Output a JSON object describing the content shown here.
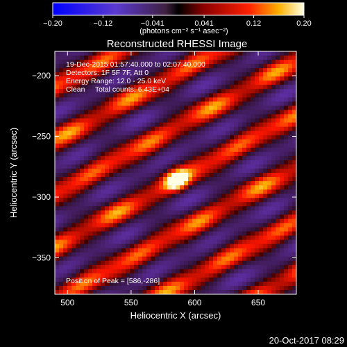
{
  "chart_data": {
    "type": "heatmap",
    "title": "Reconstructed RHESSI Image",
    "xlabel": "Heliocentric X (arcsec)",
    "ylabel": "Heliocentric Y (arcsec)",
    "xlim": [
      490,
      680
    ],
    "ylim": [
      -380,
      -180
    ],
    "x_ticks": [
      500,
      550,
      600,
      650
    ],
    "x_tick_labels": [
      "500",
      "550",
      "600",
      "650"
    ],
    "y_ticks": [
      -200,
      -250,
      -300,
      -350
    ],
    "y_tick_labels": [
      "−200",
      "−250",
      "−300",
      "−350"
    ],
    "colorbar": {
      "range": [
        -0.2,
        0.2
      ],
      "ticks": [
        -0.2,
        -0.12,
        -0.041,
        0.041,
        0.12,
        0.2
      ],
      "tick_labels": [
        "−0.20",
        "−0.12",
        "−0.041",
        "0.041",
        "0.12",
        "0.20"
      ],
      "unit_label": "(photons cm⁻² s⁻¹ asec⁻²)"
    },
    "annotations": [
      "19-Dec-2015 01:57:40.000 to 02:07:40.000",
      "Detectors: 1F 5F 7F, Att 0",
      "Energy Range: 12.0 - 25.0 keV",
      "Clean     Total counts: 6.43E+04"
    ],
    "peak_label": "Position of Peak = [586,-286]",
    "peak": [
      586,
      -286
    ],
    "grid": false
  },
  "footer": {
    "timestamp": "20-Oct-2017 08:29"
  }
}
